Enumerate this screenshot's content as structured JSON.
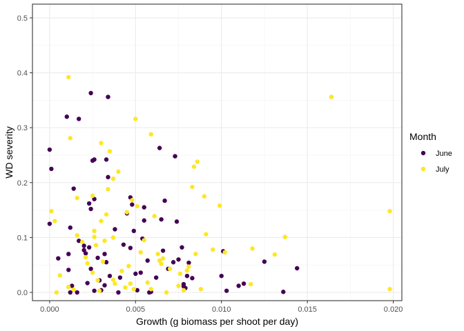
{
  "chart_data": {
    "type": "scatter",
    "title": "",
    "xlabel": "Growth (g biomass per shoot per day)",
    "ylabel": "WD severity",
    "xlim": [
      -0.001,
      0.0205
    ],
    "ylim": [
      -0.015,
      0.525
    ],
    "x_ticks": [
      0.0,
      0.005,
      0.01,
      0.015,
      0.02
    ],
    "x_tick_labels": [
      "0.000",
      "0.005",
      "0.010",
      "0.015",
      "0.020"
    ],
    "y_ticks": [
      0.0,
      0.1,
      0.2,
      0.3,
      0.4,
      0.5
    ],
    "y_tick_labels": [
      "0.0",
      "0.1",
      "0.2",
      "0.3",
      "0.4",
      "0.5"
    ],
    "grid": true,
    "legend": {
      "title": "Month",
      "position": "right"
    },
    "series": [
      {
        "name": "June",
        "color": "#440154",
        "points": [
          [
            0.0,
            0.26
          ],
          [
            0.0001,
            0.225
          ],
          [
            0.0,
            0.125
          ],
          [
            0.0005,
            0.062
          ],
          [
            0.001,
            0.32
          ],
          [
            0.0017,
            0.316
          ],
          [
            0.0014,
            0.189
          ],
          [
            0.0012,
            0.118
          ],
          [
            0.0011,
            0.07
          ],
          [
            0.0011,
            0.041
          ],
          [
            0.0013,
            0.012
          ],
          [
            0.0012,
            0.0
          ],
          [
            0.0016,
            0.0
          ],
          [
            0.0017,
            0.094
          ],
          [
            0.002,
            0.085
          ],
          [
            0.002,
            0.077
          ],
          [
            0.0021,
            0.071
          ],
          [
            0.0022,
            0.017
          ],
          [
            0.0023,
            0.162
          ],
          [
            0.0024,
            0.152
          ],
          [
            0.0023,
            0.082
          ],
          [
            0.0024,
            0.363
          ],
          [
            0.0025,
            0.24
          ],
          [
            0.0026,
            0.242
          ],
          [
            0.0026,
            0.17
          ],
          [
            0.0024,
            0.043
          ],
          [
            0.0026,
            0.003
          ],
          [
            0.0028,
            0.063
          ],
          [
            0.0029,
            0.022
          ],
          [
            0.003,
            0.004
          ],
          [
            0.0032,
            0.07
          ],
          [
            0.0033,
            0.055
          ],
          [
            0.0034,
            0.356
          ],
          [
            0.0033,
            0.242
          ],
          [
            0.0034,
            0.21
          ],
          [
            0.0032,
            0.013
          ],
          [
            0.0035,
            0.03
          ],
          [
            0.0038,
            0.115
          ],
          [
            0.004,
            0.0
          ],
          [
            0.0041,
            0.027
          ],
          [
            0.0043,
            0.087
          ],
          [
            0.0045,
            0.144
          ],
          [
            0.0047,
            0.173
          ],
          [
            0.0048,
            0.16
          ],
          [
            0.0047,
            0.081
          ],
          [
            0.0049,
            0.112
          ],
          [
            0.005,
            0.034
          ],
          [
            0.0051,
            0.004
          ],
          [
            0.0053,
            0.036
          ],
          [
            0.0054,
            0.098
          ],
          [
            0.0055,
            0.155
          ],
          [
            0.0055,
            0.131
          ],
          [
            0.0057,
            0.058
          ],
          [
            0.0058,
            0.0
          ],
          [
            0.0059,
            0.001
          ],
          [
            0.0062,
            0.027
          ],
          [
            0.0064,
            0.263
          ],
          [
            0.0065,
            0.133
          ],
          [
            0.0066,
            0.076
          ],
          [
            0.0067,
            0.167
          ],
          [
            0.0069,
            0.043
          ],
          [
            0.0072,
            0.055
          ],
          [
            0.0073,
            0.248
          ],
          [
            0.0074,
            0.129
          ],
          [
            0.0075,
            0.06
          ],
          [
            0.0077,
            0.082
          ],
          [
            0.0078,
            0.015
          ],
          [
            0.0078,
            0.011
          ],
          [
            0.0079,
            0.008
          ],
          [
            0.008,
            0.03
          ],
          [
            0.0081,
            0.054
          ],
          [
            0.0083,
            0.026
          ],
          [
            0.01,
            0.03
          ],
          [
            0.0101,
            0.075
          ],
          [
            0.0103,
            0.003
          ],
          [
            0.011,
            0.012
          ],
          [
            0.0113,
            0.016
          ],
          [
            0.0125,
            0.056
          ],
          [
            0.0136,
            0.001
          ],
          [
            0.0144,
            0.044
          ]
        ]
      },
      {
        "name": "July",
        "color": "#fde725",
        "points": [
          [
            0.0001,
            0.148
          ],
          [
            0.0003,
            0.13
          ],
          [
            0.0004,
            0.0
          ],
          [
            0.0006,
            0.031
          ],
          [
            0.0011,
            0.392
          ],
          [
            0.0012,
            0.281
          ],
          [
            0.0011,
            0.01
          ],
          [
            0.0014,
            0.005
          ],
          [
            0.0016,
            0.172
          ],
          [
            0.0016,
            0.104
          ],
          [
            0.0019,
            0.092
          ],
          [
            0.0021,
            0.064
          ],
          [
            0.0022,
            0.053
          ],
          [
            0.0025,
            0.176
          ],
          [
            0.0026,
            0.112
          ],
          [
            0.0025,
            0.036
          ],
          [
            0.0026,
            0.101
          ],
          [
            0.0027,
            0.086
          ],
          [
            0.0028,
            0.022
          ],
          [
            0.0029,
            0.003
          ],
          [
            0.003,
            0.272
          ],
          [
            0.003,
            0.13
          ],
          [
            0.0031,
            0.056
          ],
          [
            0.0032,
            0.094
          ],
          [
            0.0033,
            0.142
          ],
          [
            0.0034,
            0.188
          ],
          [
            0.0035,
            0.257
          ],
          [
            0.0037,
            0.207
          ],
          [
            0.0037,
            0.1
          ],
          [
            0.0037,
            0.023
          ],
          [
            0.0038,
            0.016
          ],
          [
            0.004,
            0.22
          ],
          [
            0.0042,
            0.039
          ],
          [
            0.0044,
            0.009
          ],
          [
            0.0045,
            0.146
          ],
          [
            0.0046,
            0.048
          ],
          [
            0.0047,
            0.016
          ],
          [
            0.0048,
            0.168
          ],
          [
            0.0049,
            0.006
          ],
          [
            0.005,
            0.316
          ],
          [
            0.0051,
            0.157
          ],
          [
            0.0053,
            0.073
          ],
          [
            0.0055,
            0.095
          ],
          [
            0.0057,
            0.018
          ],
          [
            0.0059,
            0.288
          ],
          [
            0.0059,
            0.006
          ],
          [
            0.0061,
            0.139
          ],
          [
            0.0063,
            0.07
          ],
          [
            0.0064,
            0.058
          ],
          [
            0.0065,
            0.052
          ],
          [
            0.0066,
            0.062
          ],
          [
            0.0068,
            0.0
          ],
          [
            0.007,
            0.043
          ],
          [
            0.0075,
            0.012
          ],
          [
            0.0076,
            0.034
          ],
          [
            0.0078,
            0.004
          ],
          [
            0.008,
            0.04
          ],
          [
            0.0081,
            0.047
          ],
          [
            0.0083,
            0.192
          ],
          [
            0.0084,
            0.229
          ],
          [
            0.0085,
            0.07
          ],
          [
            0.0086,
            0.238
          ],
          [
            0.0088,
            0.006
          ],
          [
            0.009,
            0.175
          ],
          [
            0.0091,
            0.106
          ],
          [
            0.0095,
            0.078
          ],
          [
            0.0099,
            0.158
          ],
          [
            0.0102,
            0.073
          ],
          [
            0.0117,
            0.015
          ],
          [
            0.0118,
            0.08
          ],
          [
            0.0131,
            0.069
          ],
          [
            0.0137,
            0.101
          ],
          [
            0.0164,
            0.356
          ],
          [
            0.0198,
            0.148
          ],
          [
            0.0198,
            0.006
          ]
        ]
      }
    ]
  }
}
